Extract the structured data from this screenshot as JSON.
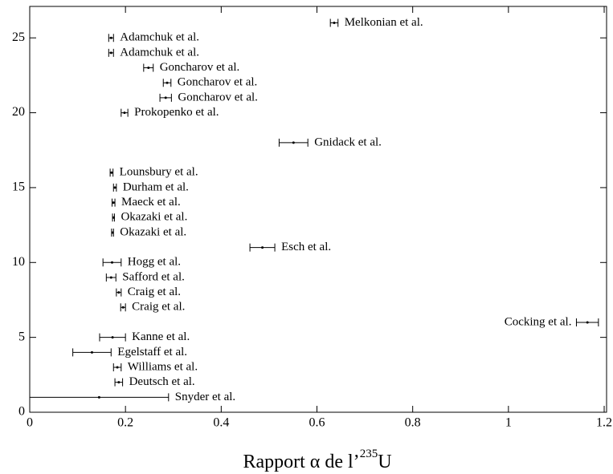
{
  "chart_data": {
    "type": "scatter",
    "xlabel": [
      "Rapport α de l’",
      "235",
      "U"
    ],
    "x": [
      0.145,
      0.186,
      0.183,
      0.13,
      0.173,
      1.165,
      0.195,
      0.186,
      0.17,
      0.172,
      0.486,
      0.173,
      0.175,
      0.175,
      0.178,
      0.171,
      0.551,
      0.198,
      0.284,
      0.287,
      0.248,
      0.17,
      0.17,
      0.636
    ],
    "xerr": [
      0.145,
      0.008,
      0.008,
      0.04,
      0.027,
      0.023,
      0.005,
      0.005,
      0.01,
      0.019,
      0.026,
      0.002,
      0.002,
      0.003,
      0.003,
      0.003,
      0.03,
      0.007,
      0.012,
      0.008,
      0.01,
      0.005,
      0.005,
      0.008
    ],
    "y": [
      1,
      2,
      3,
      4,
      5,
      6,
      7,
      8,
      9,
      10,
      11,
      12,
      13,
      14,
      15,
      16,
      18,
      20,
      21,
      22,
      23,
      24,
      25,
      26
    ],
    "labels": [
      "Snyder et al.",
      "Deutsch et al.",
      "Williams et al.",
      "Egelstaff et al.",
      "Kanne et al.",
      "Cocking et al.",
      "Craig et al.",
      "Craig et al.",
      "Safford et al.",
      "Hogg et al.",
      "Esch et al.",
      "Okazaki et al.",
      "Okazaki et al.",
      "Maeck et al.",
      "Durham et al.",
      "Lounsbury et al.",
      "Gnidack et al.",
      "Prokopenko et al.",
      "Goncharov et al.",
      "Goncharov et al.",
      "Goncharov et al.",
      "Adamchuk et al.",
      "Adamchuk et al.",
      "Melkonian et al."
    ],
    "color": "#000000",
    "xlim": [
      0,
      1.205
    ],
    "xticks": [
      0,
      0.2,
      0.4,
      0.6,
      0.8,
      1,
      1.2
    ],
    "ylim": [
      0,
      27.1
    ],
    "yticks": [
      0,
      5,
      10,
      15,
      20,
      25
    ]
  }
}
